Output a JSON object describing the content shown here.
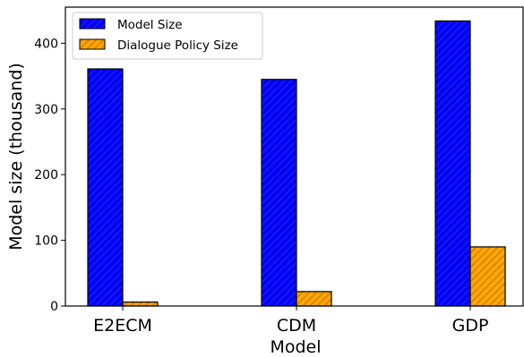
{
  "chart_data": {
    "type": "bar",
    "title": "",
    "xlabel": "Model",
    "ylabel": "Model size (thousand)",
    "categories": [
      "E2ECM",
      "CDM",
      "GDP"
    ],
    "series": [
      {
        "name": "Model Size",
        "values": [
          361,
          345,
          434
        ],
        "color": "#0000ff",
        "hatch": "///"
      },
      {
        "name": "Dialogue Policy Size",
        "values": [
          6,
          22,
          90
        ],
        "color": "#ffa500",
        "hatch": "//"
      }
    ],
    "ylim": [
      0,
      455
    ],
    "yticks": [
      0,
      100,
      200,
      300,
      400
    ],
    "grid": false,
    "legend": "top-left"
  }
}
